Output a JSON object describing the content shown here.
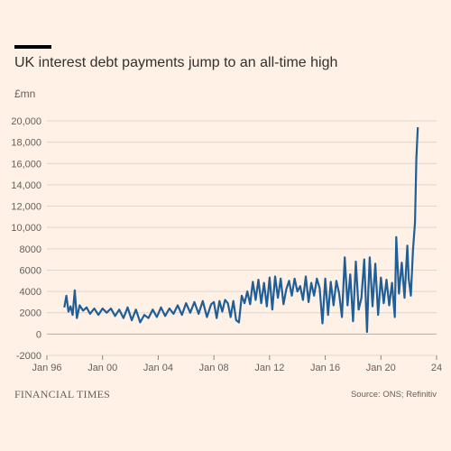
{
  "header": {
    "title": "UK interest debt payments jump to an all-time high",
    "unit": "£mn"
  },
  "footer": {
    "brand": "FINANCIAL TIMES",
    "source": "Source: ONS; Refinitiv"
  },
  "colors": {
    "background": "#fff1e5",
    "line": "#1f5e96",
    "grid": "#e0d5cb",
    "text": "#66605c",
    "accent_bar": "#000000"
  },
  "chart_data": {
    "type": "line",
    "title": "UK interest debt payments jump to an all-time high",
    "ylabel": "£mn",
    "xlim": [
      1996,
      2024
    ],
    "ylim": [
      -2000,
      20000
    ],
    "y_ticks": [
      -2000,
      0,
      2000,
      4000,
      6000,
      8000,
      10000,
      12000,
      14000,
      16000,
      18000,
      20000
    ],
    "y_tick_labels": [
      "-2000",
      "0",
      "2000",
      "4000",
      "6000",
      "8000",
      "10,000",
      "12,000",
      "14,000",
      "16,000",
      "18,000",
      "20,000"
    ],
    "x_ticks": [
      1996,
      2000,
      2004,
      2008,
      2012,
      2016,
      2020,
      2024
    ],
    "x_tick_labels": [
      "Jan 96",
      "Jan 00",
      "Jan 04",
      "Jan 08",
      "Jan 12",
      "Jan 16",
      "Jan 20",
      "24"
    ],
    "grid": "horizontal",
    "series": [
      {
        "x": [
          1997.25,
          1997.4,
          1997.55,
          1997.7,
          1997.85,
          1998.0,
          1998.15,
          1998.35,
          1998.6,
          1998.85,
          1999.1,
          1999.4,
          1999.7,
          2000.0,
          2000.3,
          2000.6,
          2000.9,
          2001.2,
          2001.5,
          2001.8,
          2002.1,
          2002.4,
          2002.7,
          2003.0,
          2003.3,
          2003.6,
          2003.9,
          2004.2,
          2004.5,
          2004.8,
          2005.1,
          2005.4,
          2005.7,
          2006.0,
          2006.3,
          2006.6,
          2006.9,
          2007.2,
          2007.5,
          2007.8,
          2008.0,
          2008.2,
          2008.4,
          2008.6,
          2008.8,
          2009.0,
          2009.2,
          2009.4,
          2009.6,
          2009.8,
          2010.0,
          2010.2,
          2010.4,
          2010.6,
          2010.8,
          2011.0,
          2011.2,
          2011.4,
          2011.6,
          2011.8,
          2012.0,
          2012.2,
          2012.4,
          2012.6,
          2012.8,
          2013.0,
          2013.2,
          2013.4,
          2013.6,
          2013.8,
          2014.0,
          2014.2,
          2014.4,
          2014.6,
          2014.8,
          2015.0,
          2015.2,
          2015.4,
          2015.6,
          2015.8,
          2016.0,
          2016.2,
          2016.4,
          2016.6,
          2016.8,
          2017.0,
          2017.2,
          2017.4,
          2017.6,
          2017.8,
          2018.0,
          2018.2,
          2018.4,
          2018.6,
          2018.8,
          2019.0,
          2019.1,
          2019.2,
          2019.4,
          2019.6,
          2019.8,
          2020.0,
          2020.2,
          2020.4,
          2020.6,
          2020.8,
          2021.0,
          2021.1,
          2021.3,
          2021.5,
          2021.7,
          2021.9,
          2022.0,
          2022.15,
          2022.3,
          2022.45,
          2022.55,
          2022.65
        ],
        "values": [
          2500,
          3600,
          2100,
          2600,
          1800,
          4100,
          1500,
          2700,
          2200,
          2500,
          1900,
          2400,
          1800,
          2400,
          2000,
          2400,
          1700,
          2300,
          1500,
          2500,
          1300,
          2300,
          1100,
          1800,
          1500,
          2300,
          1600,
          2500,
          1700,
          2400,
          1900,
          2700,
          1800,
          2900,
          2000,
          3000,
          1900,
          3100,
          1600,
          2800,
          3000,
          1500,
          3100,
          2100,
          3200,
          2900,
          1600,
          3100,
          1300,
          1100,
          3600,
          2900,
          4000,
          2800,
          4900,
          3200,
          5100,
          2900,
          4800,
          2600,
          5300,
          2300,
          5400,
          3400,
          5200,
          2800,
          4200,
          5000,
          3600,
          5200,
          4000,
          4500,
          3200,
          5400,
          3000,
          4800,
          3600,
          5200,
          4300,
          1000,
          5200,
          1800,
          4900,
          2700,
          5000,
          3800,
          1600,
          7200,
          2700,
          5600,
          1200,
          6800,
          2300,
          3400,
          7000,
          200,
          4200,
          7200,
          2600,
          6600,
          1800,
          5300,
          2900,
          5100,
          2700,
          4800,
          1600,
          9100,
          3800,
          6700,
          3400,
          8300,
          5200,
          3600,
          7800,
          10500,
          16500,
          19400
        ]
      }
    ]
  }
}
